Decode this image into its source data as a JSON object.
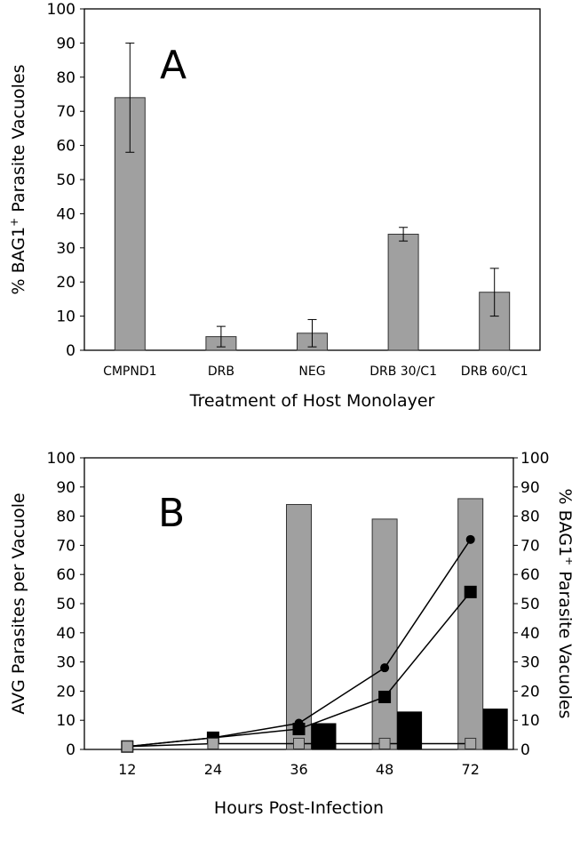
{
  "chart_data": [
    {
      "type": "bar",
      "panel_label": "A",
      "categories": [
        "CMPND1",
        "DRB",
        "NEG",
        "DRB 30/C1",
        "DRB 60/C1"
      ],
      "values": [
        74,
        4,
        5,
        34,
        17
      ],
      "error_low": [
        58,
        1,
        1,
        32,
        10
      ],
      "error_high": [
        90,
        7,
        9,
        36,
        24
      ],
      "xlabel": "Treatment of Host Monolayer",
      "ylabel": "% BAG1+ Parasite Vacuoles",
      "ylim": [
        0,
        100
      ],
      "yticks": [
        0,
        10,
        20,
        30,
        40,
        50,
        60,
        70,
        80,
        90,
        100
      ],
      "colors": {
        "bar": "#a0a0a0"
      }
    },
    {
      "type": "bar+line",
      "panel_label": "B",
      "categories": [
        "12",
        "24",
        "36",
        "48",
        "72"
      ],
      "gray_bars": [
        null,
        null,
        84,
        79,
        86
      ],
      "black_bars": [
        null,
        null,
        9,
        13,
        14
      ],
      "series": [
        {
          "name": "circles",
          "marker": "circle",
          "values": [
            1,
            4,
            9,
            28,
            72
          ]
        },
        {
          "name": "black squares",
          "marker": "square-black",
          "values": [
            1,
            4,
            7,
            18,
            54
          ]
        },
        {
          "name": "gray squares",
          "marker": "square-gray",
          "values": [
            1,
            2,
            2,
            2,
            2
          ]
        }
      ],
      "xlabel": "Hours Post-Infection",
      "ylabel": "AVG Parasites per Vacuole",
      "ylabel_right": "% BAG1+ Parasite Vacuoles",
      "ylim": [
        0,
        100
      ],
      "yticks": [
        0,
        10,
        20,
        30,
        40,
        50,
        60,
        70,
        80,
        90,
        100
      ],
      "colors": {
        "gray": "#a0a0a0",
        "black": "#000000",
        "gray_marker": "#a8a8a8"
      }
    }
  ]
}
